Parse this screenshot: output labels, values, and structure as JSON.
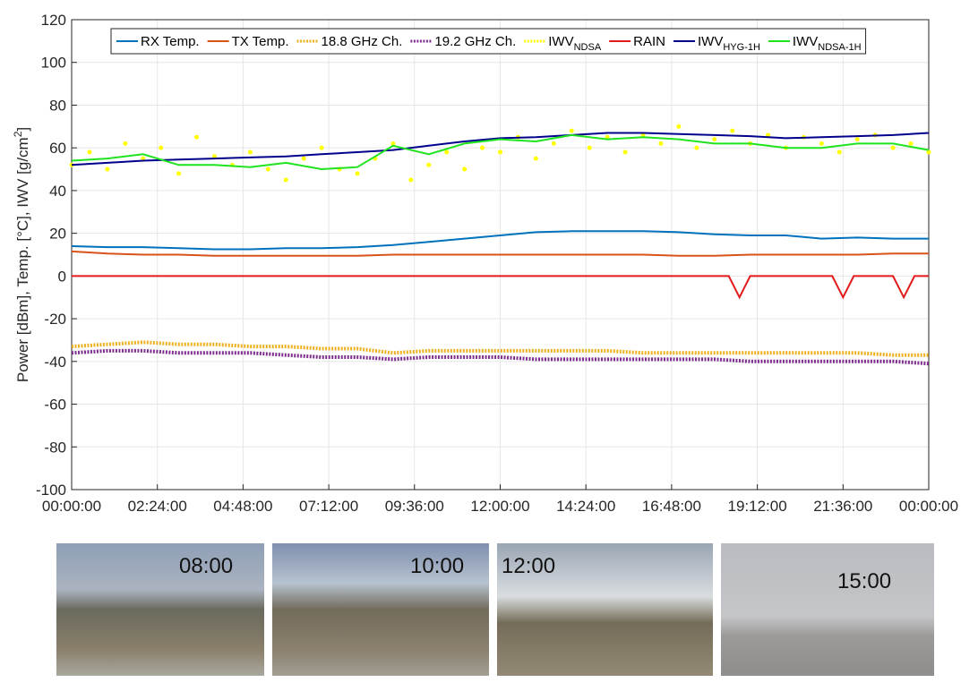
{
  "chart_data": {
    "type": "line",
    "ylabel": "Power [dBm], Temp. [°C], IWV [g/cm",
    "ylabel_sup": "2",
    "ylabel_end": "]",
    "x": [
      0,
      1,
      2,
      3,
      4,
      5,
      6,
      7,
      8,
      9,
      10,
      11,
      12,
      13,
      14,
      15,
      16,
      17,
      18,
      19,
      20,
      21,
      22,
      23,
      24
    ],
    "xlim": [
      0,
      24
    ],
    "xticks": [
      {
        "value": 0,
        "label": "00:00:00"
      },
      {
        "value": 2.4,
        "label": "02:24:00"
      },
      {
        "value": 4.8,
        "label": "04:48:00"
      },
      {
        "value": 7.2,
        "label": "07:12:00"
      },
      {
        "value": 9.6,
        "label": "09:36:00"
      },
      {
        "value": 12,
        "label": "12:00:00"
      },
      {
        "value": 14.4,
        "label": "14:24:00"
      },
      {
        "value": 16.8,
        "label": "16:48:00"
      },
      {
        "value": 19.2,
        "label": "19:12:00"
      },
      {
        "value": 21.6,
        "label": "21:36:00"
      },
      {
        "value": 24,
        "label": "00:00:00"
      }
    ],
    "ylim": [
      -100,
      120
    ],
    "yticks": [
      -100,
      -80,
      -60,
      -40,
      -20,
      0,
      20,
      40,
      60,
      80,
      100,
      120
    ],
    "grid": true,
    "series": [
      {
        "name": "RX Temp.",
        "color": "#0072bd",
        "style": "line",
        "values": [
          14,
          13.5,
          13.5,
          13,
          12.5,
          12.5,
          13,
          13,
          13.5,
          14.5,
          16,
          17.5,
          19,
          20.5,
          21,
          21,
          21,
          20.5,
          19.5,
          19,
          19,
          17.5,
          18,
          17.5,
          17.5
        ]
      },
      {
        "name": "TX Temp.",
        "color": "#d95319",
        "style": "line",
        "values": [
          11.5,
          10.5,
          10,
          10,
          9.5,
          9.5,
          9.5,
          9.5,
          9.5,
          10,
          10,
          10,
          10,
          10,
          10,
          10,
          10,
          9.5,
          9.5,
          10,
          10,
          10,
          10,
          10.5,
          10.5
        ]
      },
      {
        "name": "18.8 GHz Ch.",
        "color": "#edb120",
        "style": "dots",
        "values": [
          -33,
          -32,
          -31,
          -32,
          -32,
          -33,
          -33,
          -34,
          -34,
          -36,
          -35,
          -35,
          -35,
          -35,
          -35,
          -35,
          -36,
          -36,
          -36,
          -36,
          -36,
          -36,
          -36,
          -37,
          -37
        ]
      },
      {
        "name": "19.2 GHz Ch.",
        "color": "#7e2f8e",
        "style": "dots",
        "values": [
          -36,
          -35,
          -35,
          -36,
          -36,
          -36,
          -37,
          -38,
          -38,
          -39,
          -38,
          -38,
          -38,
          -39,
          -39,
          -39,
          -39,
          -39,
          -39,
          -40,
          -40,
          -40,
          -40,
          -40,
          -41
        ]
      },
      {
        "name": "IWV",
        "subscript": "NDSA",
        "color": "#ffff00",
        "style": "scatter",
        "x": [
          0,
          0.5,
          1,
          1.5,
          2,
          2.5,
          3,
          3.5,
          4,
          4.5,
          5,
          5.5,
          6,
          6.5,
          7,
          7.5,
          8,
          8.5,
          9,
          9.5,
          10,
          10.5,
          11,
          11.5,
          12,
          12.5,
          13,
          13.5,
          14,
          14.5,
          15,
          15.5,
          16,
          16.5,
          17,
          17.5,
          18,
          18.5,
          19,
          19.5,
          20,
          20.5,
          21,
          21.5,
          22,
          22.5,
          23,
          23.5,
          24
        ],
        "values": [
          52,
          58,
          50,
          62,
          55,
          60,
          48,
          65,
          56,
          52,
          58,
          50,
          45,
          55,
          60,
          50,
          48,
          55,
          62,
          45,
          52,
          58,
          50,
          60,
          58,
          65,
          55,
          62,
          68,
          60,
          65,
          58,
          66,
          62,
          70,
          60,
          64,
          68,
          62,
          66,
          60,
          65,
          62,
          58,
          64,
          66,
          60,
          62,
          58
        ]
      },
      {
        "name": "RAIN",
        "color": "#e31a1c",
        "style": "line",
        "x": [
          0,
          18.4,
          18.7,
          19,
          21.3,
          21.6,
          21.9,
          23,
          23.3,
          23.6,
          24
        ],
        "values": [
          0,
          0,
          -10,
          0,
          0,
          -10,
          0,
          0,
          -10,
          0,
          0
        ]
      },
      {
        "name": "IWV",
        "subscript": "HYG-1H",
        "color": "#00008b",
        "style": "line",
        "values": [
          52,
          53,
          54,
          54.5,
          55,
          55.5,
          56,
          57,
          58,
          59,
          61,
          63,
          64.5,
          65,
          66,
          67,
          67,
          66.5,
          66,
          65.5,
          64.5,
          65,
          65.5,
          66,
          67
        ]
      },
      {
        "name": "IWV",
        "subscript": "NDSA-1H",
        "color": "#1fe31f",
        "style": "line",
        "values": [
          54,
          55,
          57,
          52,
          52,
          51,
          53,
          50,
          51,
          61,
          57,
          62,
          64,
          63,
          66,
          64,
          65,
          64,
          62,
          62,
          60,
          60,
          62,
          62,
          59
        ]
      }
    ]
  },
  "photos": [
    {
      "label": "08:00"
    },
    {
      "label": "10:00"
    },
    {
      "label": "12:00"
    },
    {
      "label": "15:00"
    }
  ]
}
